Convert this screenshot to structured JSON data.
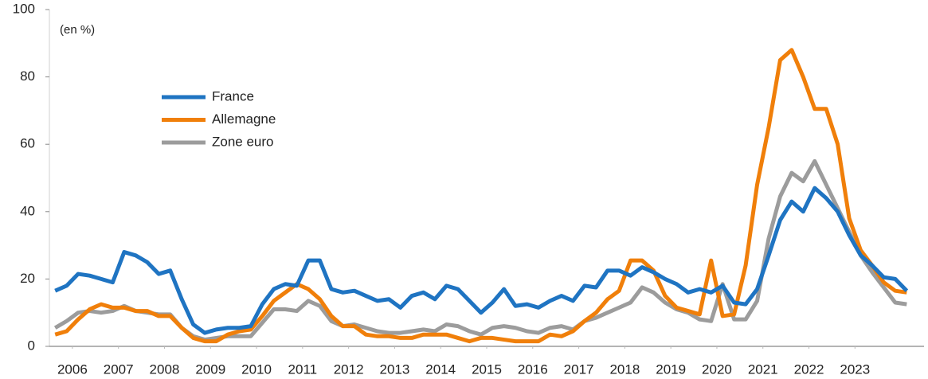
{
  "chart_data": {
    "type": "line",
    "annotation": "(en %)",
    "x": [
      2006.125,
      2006.375,
      2006.625,
      2006.875,
      2007.125,
      2007.375,
      2007.625,
      2007.875,
      2008.125,
      2008.375,
      2008.625,
      2008.875,
      2009.125,
      2009.375,
      2009.625,
      2009.875,
      2010.125,
      2010.375,
      2010.625,
      2010.875,
      2011.125,
      2011.375,
      2011.625,
      2011.875,
      2012.125,
      2012.375,
      2012.625,
      2012.875,
      2013.125,
      2013.375,
      2013.625,
      2013.875,
      2014.125,
      2014.375,
      2014.625,
      2014.875,
      2015.125,
      2015.375,
      2015.625,
      2015.875,
      2016.125,
      2016.375,
      2016.625,
      2016.875,
      2017.125,
      2017.375,
      2017.625,
      2017.875,
      2018.125,
      2018.375,
      2018.625,
      2018.875,
      2019.125,
      2019.375,
      2019.625,
      2019.875,
      2020.125,
      2020.375,
      2020.625,
      2020.875,
      2021.125,
      2021.375,
      2021.625,
      2021.875,
      2022.125,
      2022.375,
      2022.625,
      2022.875,
      2023.125,
      2023.375,
      2023.625,
      2023.875,
      2024.125,
      2024.375,
      2024.625
    ],
    "series": [
      {
        "name": "France",
        "color": "#1f74c2",
        "values": [
          16.5,
          18,
          21.5,
          21,
          20,
          19,
          28,
          27,
          25,
          21.5,
          22.5,
          14,
          6.5,
          4,
          5,
          5.5,
          5.5,
          6,
          12.5,
          17,
          18.5,
          18,
          25.5,
          25.5,
          17,
          16,
          16.5,
          15,
          13.5,
          14,
          11.5,
          15,
          16,
          14,
          18,
          17,
          13.5,
          10,
          13,
          17,
          12,
          12.5,
          11.5,
          13.5,
          15,
          13.5,
          18,
          17.5,
          22.5,
          22.5,
          21,
          23.5,
          22,
          20,
          18.5,
          16,
          17,
          16,
          18,
          13,
          12.5,
          17,
          27,
          37.5,
          43,
          40,
          47,
          44,
          40,
          33,
          27,
          24,
          20.5,
          20,
          16.5
        ]
      },
      {
        "name": "Allemagne",
        "color": "#f07f0a",
        "values": [
          3.5,
          4.5,
          8,
          11,
          12.5,
          11.5,
          11.5,
          10.5,
          10.5,
          9,
          9,
          5.5,
          2.5,
          1.5,
          1.5,
          3.5,
          4.5,
          5,
          9,
          13.5,
          16,
          18.5,
          17,
          14,
          9,
          6,
          6,
          3.5,
          3,
          3,
          2.5,
          2.5,
          3.5,
          3.5,
          3.5,
          2.5,
          1.5,
          2.5,
          2.5,
          2,
          1.5,
          1.5,
          1.5,
          3.5,
          3,
          4.5,
          7.5,
          10,
          14,
          16.5,
          25.5,
          25.5,
          22.5,
          15,
          11.5,
          10.5,
          9.5,
          25.5,
          9,
          9.5,
          24,
          48,
          65,
          85,
          88,
          80,
          70.5,
          70.5,
          60,
          38,
          28.5,
          24,
          19,
          16.5,
          16
        ]
      },
      {
        "name": "Zone euro",
        "color": "#9c9c9c",
        "values": [
          5.5,
          7.5,
          10,
          10.5,
          10,
          10.5,
          12,
          10.5,
          10,
          9.5,
          9.5,
          5.5,
          3,
          2,
          2.5,
          3,
          3,
          3,
          7,
          11,
          11,
          10.5,
          13.5,
          12,
          7.5,
          6,
          6.5,
          5.5,
          4.5,
          4,
          4,
          4.5,
          5,
          4.5,
          6.5,
          6,
          4.5,
          3.5,
          5.5,
          6,
          5.5,
          4.5,
          4,
          5.5,
          6,
          5,
          7.5,
          8.5,
          10,
          11.5,
          13,
          17.5,
          16,
          13,
          11,
          10,
          8,
          7.5,
          18.5,
          8,
          8,
          13.5,
          32,
          44.5,
          51.5,
          49,
          55,
          48,
          41,
          34,
          27,
          22,
          17.5,
          13,
          12.5
        ]
      }
    ],
    "xlim": [
      2006,
      2025
    ],
    "xticks": [
      {
        "value": 2006.5,
        "label": "2006"
      },
      {
        "value": 2007.5,
        "label": "2007"
      },
      {
        "value": 2008.5,
        "label": "2008"
      },
      {
        "value": 2009.5,
        "label": "2009"
      },
      {
        "value": 2010.5,
        "label": "2010"
      },
      {
        "value": 2011.5,
        "label": "2011"
      },
      {
        "value": 2012.5,
        "label": "2012"
      },
      {
        "value": 2013.5,
        "label": "2013"
      },
      {
        "value": 2014.5,
        "label": "2014"
      },
      {
        "value": 2015.5,
        "label": "2015"
      },
      {
        "value": 2016.5,
        "label": "2016"
      },
      {
        "value": 2017.5,
        "label": "2017"
      },
      {
        "value": 2018.5,
        "label": "2018"
      },
      {
        "value": 2019.5,
        "label": "2019"
      },
      {
        "value": 2020.5,
        "label": "2020"
      },
      {
        "value": 2021.5,
        "label": "2021"
      },
      {
        "value": 2022.5,
        "label": "2022"
      },
      {
        "value": 2023.5,
        "label": "2023"
      }
    ],
    "ylim": [
      0,
      100
    ],
    "yticks": [
      0,
      20,
      40,
      60,
      80,
      100
    ],
    "legend": "upper left"
  }
}
